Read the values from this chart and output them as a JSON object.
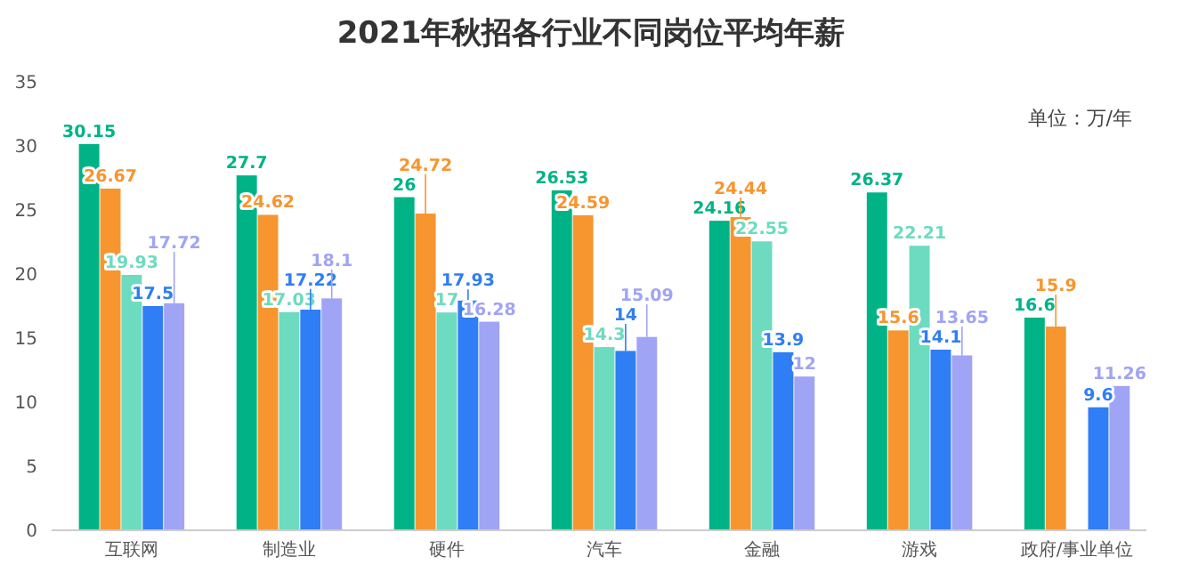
{
  "chart_data": {
    "type": "bar",
    "title": "2021年秋招各行业不同岗位平均年薪",
    "annotations": [
      "单位：万/年"
    ],
    "categories": [
      "互联网",
      "制造业",
      "硬件",
      "汽车",
      "金融",
      "游戏",
      "政府/事业单位"
    ],
    "series": [
      {
        "color": "#00b386",
        "values": [
          30.15,
          27.7,
          26,
          26.53,
          24.16,
          26.37,
          16.6
        ]
      },
      {
        "color": "#f7952f",
        "values": [
          26.67,
          24.62,
          24.72,
          24.59,
          24.44,
          15.6,
          15.9
        ]
      },
      {
        "color": "#6ddbbf",
        "values": [
          19.93,
          17.03,
          17,
          14.3,
          22.55,
          22.21,
          null
        ]
      },
      {
        "color": "#2f7ef5",
        "values": [
          17.5,
          17.22,
          17.93,
          14,
          13.9,
          14.1,
          9.6
        ]
      },
      {
        "color": "#a0a4f5",
        "values": [
          17.72,
          18.1,
          16.28,
          15.09,
          12,
          13.65,
          11.26
        ]
      }
    ],
    "ylim": [
      0,
      35
    ],
    "yticks": [
      0,
      5,
      10,
      15,
      20,
      25,
      30,
      35
    ],
    "grid": false,
    "data_labels": true
  }
}
